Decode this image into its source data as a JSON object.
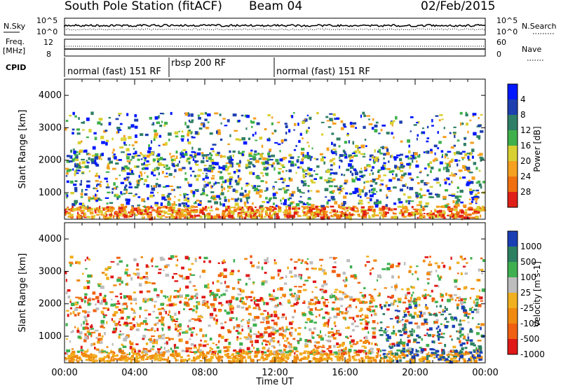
{
  "header": {
    "title": "South Pole Station (fitACF)",
    "beam": "Beam 04",
    "date": "02/Feb/2015"
  },
  "top_panels": {
    "nsky_label": "N.Sky",
    "nsky_ticks": [
      "10^5",
      "10^0"
    ],
    "nsearch_label": "N.Search",
    "nsearch_ticks": [
      "10^5",
      "10^0"
    ],
    "freq_label_1": "Freq.",
    "freq_label_2": "[MHz]",
    "freq_ticks": [
      "12",
      "8"
    ],
    "nave_label": "Nave",
    "nave_ticks": [
      "60",
      "0"
    ],
    "cpid_label": "CPID",
    "cpid_segments": [
      "normal (fast) 151 RF",
      "rbsp 200 RF",
      "normal (fast) 151 RF"
    ]
  },
  "chart_data": [
    {
      "type": "heatmap",
      "title": "",
      "xlabel": "Time UT",
      "ylabel": "Slant Range [km]",
      "ylim": [
        180,
        4500
      ],
      "y_ticks": [
        "1000",
        "2000",
        "3000",
        "4000"
      ],
      "x_ticks": [
        "00:00",
        "04:00",
        "08:00",
        "12:00",
        "16:00",
        "20:00",
        "00:00"
      ],
      "colorbar_label": "Power [dB]",
      "colorbar_ticks": [
        "4",
        "8",
        "12",
        "16",
        "20",
        "24",
        "28"
      ],
      "colors": [
        "#0018ff",
        "#1e3fb0",
        "#2f7f66",
        "#3fb04a",
        "#d8d030",
        "#f5a020",
        "#f07010",
        "#e02018"
      ]
    },
    {
      "type": "heatmap",
      "title": "",
      "xlabel": "Time UT",
      "ylabel": "Slant Range [km]",
      "ylim": [
        180,
        4500
      ],
      "y_ticks": [
        "1000",
        "2000",
        "3000",
        "4000"
      ],
      "x_ticks": [
        "00:00",
        "04:00",
        "08:00",
        "12:00",
        "16:00",
        "20:00",
        "00:00"
      ],
      "colorbar_label": "Velocity [m s-1]",
      "colorbar_ticks": [
        "1000",
        "500",
        "100",
        "25",
        "-25",
        "-100",
        "-500",
        "-1000"
      ],
      "colors": [
        "#1a3fb5",
        "#2d7f62",
        "#3fb050",
        "#bdbdbd",
        "#f0b020",
        "#f08a10",
        "#f06010",
        "#e01818"
      ]
    }
  ]
}
